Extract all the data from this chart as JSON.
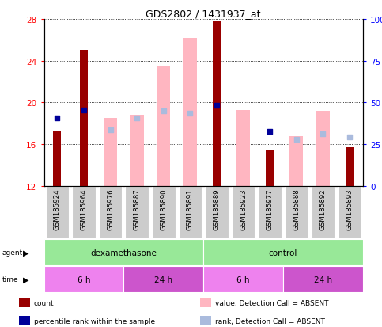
{
  "title": "GDS2802 / 1431937_at",
  "samples": [
    "GSM185924",
    "GSM185964",
    "GSM185976",
    "GSM185887",
    "GSM185890",
    "GSM185891",
    "GSM185889",
    "GSM185923",
    "GSM185977",
    "GSM185888",
    "GSM185892",
    "GSM185893"
  ],
  "ylim_left": [
    12,
    28
  ],
  "ylim_right": [
    0,
    100
  ],
  "yticks_left": [
    12,
    16,
    20,
    24,
    28
  ],
  "yticks_right": [
    0,
    25,
    50,
    75,
    100
  ],
  "ytick_labels_left": [
    "12",
    "16",
    "20",
    "24",
    "28"
  ],
  "ytick_labels_right": [
    "0",
    "25",
    "50",
    "75",
    "100%"
  ],
  "count_values": [
    17.2,
    25.0,
    0,
    0,
    0,
    0,
    27.8,
    0,
    15.5,
    0,
    0,
    15.7
  ],
  "pink_bar_top": [
    0,
    0,
    18.5,
    18.8,
    23.5,
    26.2,
    0,
    19.3,
    0,
    16.8,
    19.2,
    0
  ],
  "blue_dot_y": [
    18.5,
    19.3,
    0,
    0,
    0,
    0,
    19.7,
    0,
    17.2,
    0,
    0,
    0
  ],
  "light_blue_dot_y": [
    0,
    0,
    17.4,
    18.5,
    19.2,
    19.0,
    0,
    0,
    0,
    16.5,
    17.0,
    16.7
  ],
  "has_count": [
    true,
    true,
    false,
    false,
    false,
    false,
    true,
    false,
    true,
    false,
    false,
    true
  ],
  "has_pink": [
    false,
    false,
    true,
    true,
    true,
    true,
    false,
    true,
    false,
    true,
    true,
    false
  ],
  "has_blue": [
    true,
    true,
    false,
    false,
    false,
    false,
    true,
    false,
    true,
    false,
    false,
    false
  ],
  "has_light_blue": [
    false,
    false,
    true,
    true,
    true,
    true,
    false,
    false,
    false,
    true,
    true,
    true
  ],
  "agent_groups": [
    {
      "label": "dexamethasone",
      "start": 0,
      "end": 6,
      "color": "#98E898"
    },
    {
      "label": "control",
      "start": 6,
      "end": 12,
      "color": "#98E898"
    }
  ],
  "time_groups": [
    {
      "label": "6 h",
      "start": 0,
      "end": 3,
      "color": "#EE82EE"
    },
    {
      "label": "24 h",
      "start": 3,
      "end": 6,
      "color": "#CC55CC"
    },
    {
      "label": "6 h",
      "start": 6,
      "end": 9,
      "color": "#EE82EE"
    },
    {
      "label": "24 h",
      "start": 9,
      "end": 12,
      "color": "#CC55CC"
    }
  ],
  "color_count": "#990000",
  "color_pink": "#FFB6C1",
  "color_blue": "#000099",
  "color_light_blue": "#AABBDD",
  "pink_bar_width": 0.5,
  "count_bar_width": 0.3,
  "dot_size": 18,
  "base": 12
}
